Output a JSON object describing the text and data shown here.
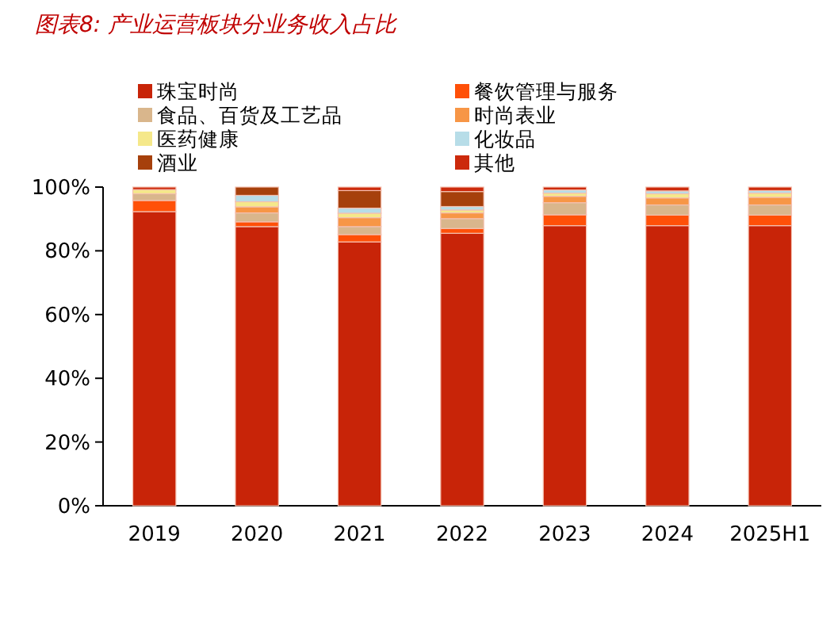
{
  "chart_data": {
    "type": "bar",
    "title": "图表8:  产业运营板块分业务收入占比",
    "stacked": true,
    "legend": "top",
    "categories": [
      "2019",
      "2020",
      "2021",
      "2022",
      "2023",
      "2024",
      "2025H1"
    ],
    "ylim": [
      0,
      100
    ],
    "yticks": [
      {
        "value": 0,
        "label": "0%"
      },
      {
        "value": 20,
        "label": "20%"
      },
      {
        "value": 40,
        "label": "40%"
      },
      {
        "value": 60,
        "label": "60%"
      },
      {
        "value": 80,
        "label": "80%"
      },
      {
        "value": 100,
        "label": "100%"
      }
    ],
    "series": [
      {
        "name": "珠宝时尚",
        "color": "#c82408",
        "values": [
          92.3,
          87.6,
          82.8,
          85.5,
          87.9,
          87.9,
          87.9
        ]
      },
      {
        "name": "餐饮管理与服务",
        "color": "#ff5008",
        "values": [
          3.5,
          1.5,
          2.3,
          1.5,
          3.4,
          3.3,
          3.3
        ]
      },
      {
        "name": "食品、百货及工艺品",
        "color": "#d9b68c",
        "values": [
          2.1,
          2.8,
          2.5,
          3.1,
          3.8,
          3.2,
          3.2
        ]
      },
      {
        "name": "时尚表业",
        "color": "#f79646",
        "values": [
          null,
          1.9,
          2.8,
          1.8,
          2.0,
          2.2,
          2.4
        ]
      },
      {
        "name": "医药健康",
        "color": "#f5e88a",
        "values": [
          1.3,
          1.6,
          1.4,
          0.9,
          1.0,
          1.3,
          1.3
        ]
      },
      {
        "name": "化妆品",
        "color": "#b7dde8",
        "values": [
          0,
          2.0,
          1.6,
          1.1,
          1.0,
          0.9,
          0.8
        ]
      },
      {
        "name": "酒业",
        "color": "#a6400c",
        "values": [
          0,
          2.6,
          5.5,
          4.7,
          null,
          0,
          0
        ]
      },
      {
        "name": "其他",
        "color": "#cc2a0c",
        "values": [
          0.8,
          0,
          1.1,
          1.4,
          0.9,
          1.2,
          1.1
        ]
      }
    ]
  }
}
